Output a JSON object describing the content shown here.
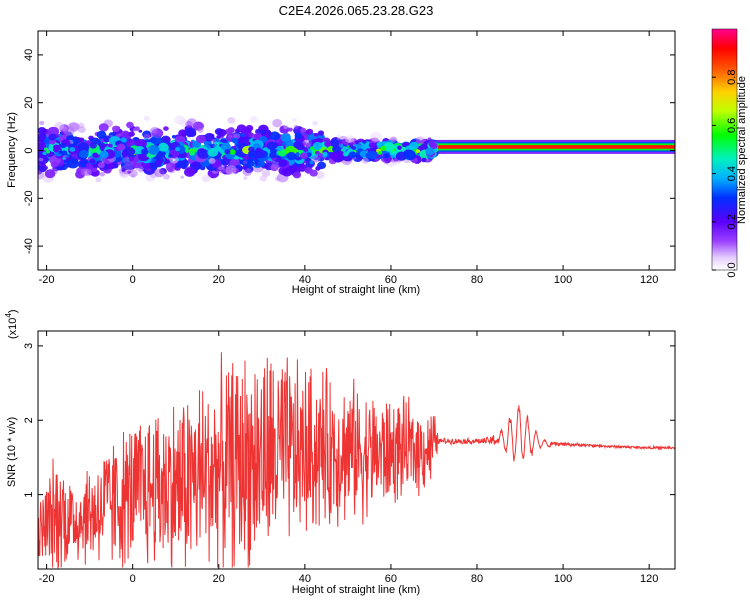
{
  "title": "C2E4.2026.065.23.28.G23",
  "chart_data": [
    {
      "type": "heatmap",
      "xlabel": "Height of straight line (km)",
      "ylabel": "Frequency (Hz)",
      "xlim": [
        -22,
        126
      ],
      "ylim": [
        -50,
        50
      ],
      "xticks": [
        -20,
        0,
        20,
        40,
        60,
        80,
        100,
        120
      ],
      "xtick_labels": [
        "-20",
        "0",
        "20",
        "40",
        "60",
        "80",
        "100",
        "120"
      ],
      "yticks": [
        -40,
        -20,
        0,
        20,
        40
      ],
      "ytick_labels": [
        "-40",
        "-20",
        "0",
        "20",
        "40"
      ],
      "colorbar": {
        "label": "Normalized spectral amplitude",
        "range": [
          0,
          1
        ],
        "ticks": [
          0.0,
          0.2,
          0.4,
          0.6,
          0.8
        ],
        "tick_labels": [
          "0.0",
          "0.2",
          "0.4",
          "0.6",
          "0.8"
        ]
      },
      "regions": [
        {
          "name": "noisy scatter",
          "x_range": [
            -22,
            44
          ],
          "freq_range": [
            -12,
            12
          ],
          "peak_amplitude": 0.45
        },
        {
          "name": "dense band",
          "x_range": [
            44,
            70
          ],
          "freq_range": [
            -5,
            6
          ],
          "peak_amplitude": 0.55
        },
        {
          "name": "stable line",
          "x_range": [
            70,
            126
          ],
          "center_freq": 1.5,
          "peak_amplitude": 1.0
        }
      ]
    },
    {
      "type": "line",
      "xlabel": "Height of straight line (km)",
      "ylabel": "SNR (10 * v/v)",
      "y_multiplier": "(x10",
      "y_multiplier_exp": "4",
      "xlim": [
        -22,
        126
      ],
      "ylim": [
        0,
        3.2
      ],
      "xticks": [
        -20,
        0,
        20,
        40,
        60,
        80,
        100,
        120
      ],
      "xtick_labels": [
        "-20",
        "0",
        "20",
        "40",
        "60",
        "80",
        "100",
        "120"
      ],
      "yticks": [
        1,
        2,
        3
      ],
      "ytick_labels": [
        "1",
        "2",
        "3"
      ],
      "series": [
        {
          "name": "SNR",
          "color": "#ee3333",
          "envelope": {
            "x": [
              -22,
              -20,
              -17,
              -14,
              -10,
              -6,
              -2,
              2,
              6,
              10,
              14,
              18,
              22,
              26,
              30,
              34,
              38,
              42,
              46,
              50,
              54,
              58,
              62,
              66,
              70,
              71,
              76,
              82,
              86,
              88,
              90,
              92,
              94,
              96,
              100,
              110,
              120,
              126
            ],
            "mean": [
              0.45,
              0.6,
              0.75,
              0.65,
              0.75,
              0.85,
              0.95,
              1.05,
              1.15,
              1.1,
              1.2,
              1.3,
              1.4,
              1.45,
              1.5,
              1.55,
              1.55,
              1.6,
              1.6,
              1.6,
              1.55,
              1.55,
              1.6,
              1.6,
              1.65,
              1.72,
              1.72,
              1.72,
              1.74,
              1.78,
              1.85,
              1.75,
              1.72,
              1.68,
              1.68,
              1.65,
              1.63,
              1.63
            ],
            "amplitude": [
              0.4,
              0.8,
              1.0,
              0.7,
              0.8,
              1.0,
              1.1,
              1.2,
              1.3,
              1.4,
              1.5,
              1.5,
              1.6,
              1.7,
              1.7,
              1.6,
              1.4,
              1.3,
              1.2,
              1.1,
              1.0,
              0.9,
              0.8,
              0.7,
              0.6,
              0.05,
              0.04,
              0.05,
              0.15,
              0.35,
              0.5,
              0.3,
              0.12,
              0.05,
              0.03,
              0.02,
              0.02,
              0.02
            ]
          }
        }
      ]
    }
  ]
}
